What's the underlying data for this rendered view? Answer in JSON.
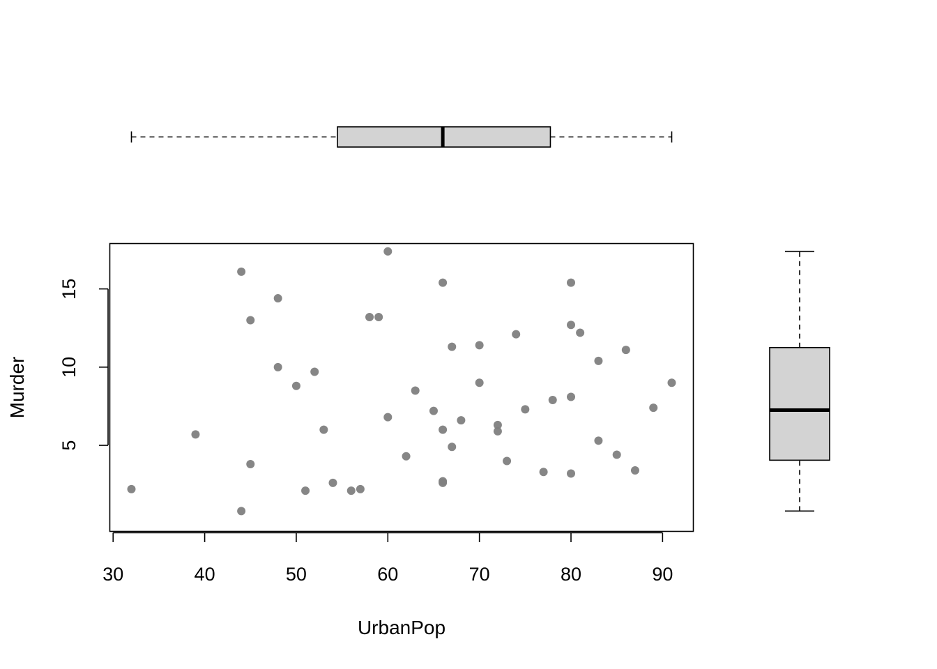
{
  "chart_data": {
    "type": "scatter",
    "xlabel": "UrbanPop",
    "ylabel": "Murder",
    "x_ticks": [
      30,
      40,
      50,
      60,
      70,
      80,
      90
    ],
    "y_ticks": [
      5,
      10,
      15
    ],
    "xlim": [
      29.64,
      93.36
    ],
    "ylim": [
      -0.5,
      17.9
    ],
    "grid": false,
    "marginal_boxplots": {
      "x": {
        "min": 32,
        "q1": 54.5,
        "median": 66,
        "q3": 77.75,
        "max": 91
      },
      "y": {
        "min": 0.8,
        "q1": 4.05,
        "median": 7.25,
        "q3": 11.25,
        "max": 17.4
      }
    },
    "points": [
      {
        "x": 58,
        "y": 13.2
      },
      {
        "x": 48,
        "y": 10.0
      },
      {
        "x": 80,
        "y": 8.1
      },
      {
        "x": 50,
        "y": 8.8
      },
      {
        "x": 91,
        "y": 9.0
      },
      {
        "x": 78,
        "y": 7.9
      },
      {
        "x": 77,
        "y": 3.3
      },
      {
        "x": 72,
        "y": 5.9
      },
      {
        "x": 80,
        "y": 15.4
      },
      {
        "x": 60,
        "y": 17.4
      },
      {
        "x": 83,
        "y": 5.3
      },
      {
        "x": 54,
        "y": 2.6
      },
      {
        "x": 83,
        "y": 10.4
      },
      {
        "x": 65,
        "y": 7.2
      },
      {
        "x": 57,
        "y": 2.2
      },
      {
        "x": 66,
        "y": 6.0
      },
      {
        "x": 52,
        "y": 9.7
      },
      {
        "x": 66,
        "y": 15.4
      },
      {
        "x": 51,
        "y": 2.1
      },
      {
        "x": 67,
        "y": 11.3
      },
      {
        "x": 85,
        "y": 4.4
      },
      {
        "x": 74,
        "y": 12.1
      },
      {
        "x": 66,
        "y": 2.7
      },
      {
        "x": 44,
        "y": 16.1
      },
      {
        "x": 70,
        "y": 9.0
      },
      {
        "x": 53,
        "y": 6.0
      },
      {
        "x": 62,
        "y": 4.3
      },
      {
        "x": 81,
        "y": 12.2
      },
      {
        "x": 56,
        "y": 2.1
      },
      {
        "x": 89,
        "y": 7.4
      },
      {
        "x": 70,
        "y": 11.4
      },
      {
        "x": 86,
        "y": 11.1
      },
      {
        "x": 45,
        "y": 13.0
      },
      {
        "x": 44,
        "y": 0.8
      },
      {
        "x": 75,
        "y": 7.3
      },
      {
        "x": 68,
        "y": 6.6
      },
      {
        "x": 67,
        "y": 4.9
      },
      {
        "x": 72,
        "y": 6.3
      },
      {
        "x": 87,
        "y": 3.4
      },
      {
        "x": 48,
        "y": 14.4
      },
      {
        "x": 45,
        "y": 3.8
      },
      {
        "x": 59,
        "y": 13.2
      },
      {
        "x": 80,
        "y": 12.7
      },
      {
        "x": 80,
        "y": 3.2
      },
      {
        "x": 32,
        "y": 2.2
      },
      {
        "x": 63,
        "y": 8.5
      },
      {
        "x": 73,
        "y": 4.0
      },
      {
        "x": 39,
        "y": 5.7
      },
      {
        "x": 66,
        "y": 2.6
      },
      {
        "x": 60,
        "y": 6.8
      }
    ],
    "colors": {
      "point": "#808080",
      "box_fill": "#d3d3d3",
      "line": "#000000"
    }
  }
}
